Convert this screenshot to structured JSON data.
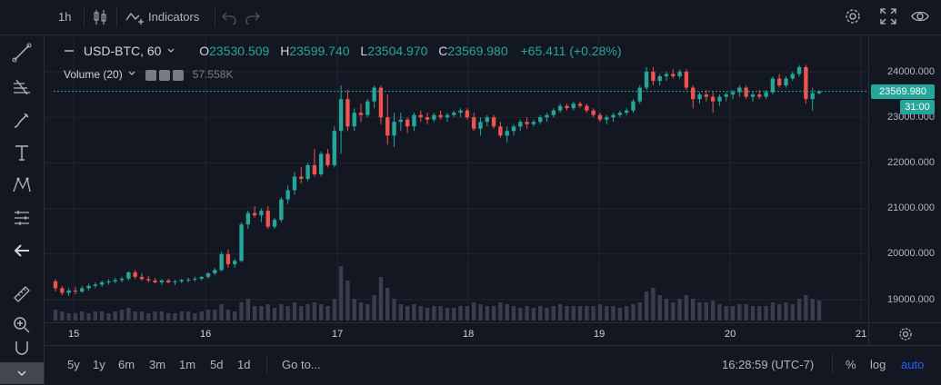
{
  "topbar": {
    "interval": "1h",
    "indicators_label": "Indicators"
  },
  "legend": {
    "symbol": "USD-BTC, 60",
    "open_label": "O",
    "open": "23530.509",
    "high_label": "H",
    "high": "23599.740",
    "low_label": "L",
    "low": "23504.970",
    "close_label": "C",
    "close": "23569.980",
    "change": "+65.411 (+0.28%)",
    "volume_label": "Volume (20)",
    "volume_value": "57.558K"
  },
  "price_axis": {
    "ticks": [
      "24000.000",
      "23000.000",
      "22000.000",
      "21000.000",
      "20000.000",
      "19000.000"
    ],
    "last_price": "23569.980",
    "countdown": "31:00"
  },
  "time_axis": {
    "ticks": [
      "15",
      "16",
      "17",
      "18",
      "19",
      "20",
      "21"
    ]
  },
  "bottombar": {
    "ranges": [
      "5y",
      "1y",
      "6m",
      "3m",
      "1m",
      "5d",
      "1d"
    ],
    "goto": "Go to...",
    "clock": "16:28:59 (UTC-7)",
    "percent": "%",
    "log": "log",
    "auto": "auto"
  },
  "colors": {
    "up": "#26a69a",
    "down": "#ef5350",
    "background": "#131722",
    "grid": "#2a2e39",
    "accent": "#2962ff"
  },
  "icons": [
    "crosshair-icon",
    "trend-line-icon",
    "fib-icon",
    "brush-icon",
    "text-icon",
    "pattern-icon",
    "measure-icon",
    "back-arrow-icon",
    "ruler-icon",
    "zoom-in-icon",
    "magnet-icon",
    "candles-icon",
    "indicators-icon",
    "undo-icon",
    "redo-icon",
    "settings-icon",
    "fullscreen-icon",
    "eye-icon",
    "gear-icon"
  ],
  "chart_data": {
    "type": "candlestick",
    "x_ticks": [
      "15",
      "16",
      "17",
      "18",
      "19",
      "20",
      "21"
    ],
    "y_ticks": [
      19000,
      20000,
      21000,
      22000,
      23000,
      24000
    ],
    "ylim": [
      18700,
      24400
    ],
    "last_price": 23569.98,
    "ohlc_approx": [
      [
        19400,
        19450,
        19180,
        19250
      ],
      [
        19250,
        19300,
        19100,
        19150
      ],
      [
        19150,
        19250,
        19080,
        19200
      ],
      [
        19200,
        19280,
        19120,
        19180
      ],
      [
        19180,
        19300,
        19150,
        19250
      ],
      [
        19250,
        19350,
        19200,
        19300
      ],
      [
        19300,
        19380,
        19250,
        19330
      ],
      [
        19330,
        19420,
        19280,
        19380
      ],
      [
        19380,
        19450,
        19330,
        19400
      ],
      [
        19400,
        19480,
        19360,
        19430
      ],
      [
        19430,
        19500,
        19380,
        19460
      ],
      [
        19460,
        19620,
        19420,
        19600
      ],
      [
        19600,
        19650,
        19450,
        19500
      ],
      [
        19500,
        19580,
        19420,
        19450
      ],
      [
        19450,
        19520,
        19380,
        19420
      ],
      [
        19420,
        19480,
        19350,
        19380
      ],
      [
        19380,
        19450,
        19330,
        19420
      ],
      [
        19420,
        19460,
        19350,
        19380
      ],
      [
        19380,
        19440,
        19320,
        19400
      ],
      [
        19400,
        19460,
        19360,
        19430
      ],
      [
        19430,
        19480,
        19380,
        19440
      ],
      [
        19440,
        19500,
        19400,
        19460
      ],
      [
        19460,
        19520,
        19420,
        19500
      ],
      [
        19500,
        19600,
        19460,
        19580
      ],
      [
        19580,
        19700,
        19540,
        19650
      ],
      [
        19650,
        20050,
        19620,
        20000
      ],
      [
        20000,
        20100,
        19700,
        19780
      ],
      [
        19780,
        19900,
        19700,
        19850
      ],
      [
        19850,
        20700,
        19820,
        20650
      ],
      [
        20650,
        20950,
        20550,
        20900
      ],
      [
        20900,
        21050,
        20800,
        20850
      ],
      [
        20850,
        21000,
        20700,
        20950
      ],
      [
        20950,
        21050,
        20550,
        20600
      ],
      [
        20600,
        20800,
        20550,
        20750
      ],
      [
        20750,
        21250,
        20700,
        21200
      ],
      [
        21200,
        21500,
        21100,
        21400
      ],
      [
        21400,
        21800,
        21300,
        21700
      ],
      [
        21700,
        21900,
        21550,
        21650
      ],
      [
        21650,
        22000,
        21600,
        21950
      ],
      [
        21950,
        22300,
        21700,
        21750
      ],
      [
        21750,
        22250,
        21700,
        22200
      ],
      [
        22200,
        22300,
        21900,
        21950
      ],
      [
        21950,
        22800,
        21900,
        22700
      ],
      [
        22700,
        23700,
        22200,
        23400
      ],
      [
        23400,
        23600,
        22700,
        22800
      ],
      [
        22800,
        23200,
        22700,
        23100
      ],
      [
        23100,
        23300,
        22900,
        23050
      ],
      [
        23050,
        23400,
        23000,
        23350
      ],
      [
        23350,
        23700,
        23200,
        23650
      ],
      [
        23650,
        23700,
        22850,
        23000
      ],
      [
        23000,
        23500,
        22400,
        22600
      ],
      [
        22600,
        23100,
        22350,
        22900
      ],
      [
        22900,
        23100,
        22700,
        22950
      ],
      [
        22950,
        23000,
        22650,
        22800
      ],
      [
        22800,
        23100,
        22700,
        23050
      ],
      [
        23050,
        23150,
        22900,
        23000
      ],
      [
        23000,
        23100,
        22850,
        22950
      ],
      [
        22950,
        23100,
        22900,
        23050
      ],
      [
        23050,
        23150,
        22950,
        23000
      ],
      [
        23000,
        23100,
        22900,
        23050
      ],
      [
        23050,
        23150,
        23000,
        23100
      ],
      [
        23100,
        23200,
        23000,
        23150
      ],
      [
        23150,
        23200,
        22950,
        23000
      ],
      [
        23000,
        23100,
        22700,
        22750
      ],
      [
        22750,
        23000,
        22600,
        22900
      ],
      [
        22900,
        23050,
        22800,
        23000
      ],
      [
        23000,
        23050,
        22750,
        22800
      ],
      [
        22800,
        22900,
        22550,
        22600
      ],
      [
        22600,
        22800,
        22450,
        22700
      ],
      [
        22700,
        22850,
        22600,
        22800
      ],
      [
        22800,
        22950,
        22700,
        22900
      ],
      [
        22900,
        23000,
        22750,
        22850
      ],
      [
        22850,
        22950,
        22800,
        22900
      ],
      [
        22900,
        23050,
        22850,
        23000
      ],
      [
        23000,
        23100,
        22900,
        23050
      ],
      [
        23050,
        23200,
        23000,
        23150
      ],
      [
        23150,
        23300,
        23100,
        23250
      ],
      [
        23250,
        23300,
        23150,
        23200
      ],
      [
        23200,
        23350,
        23150,
        23300
      ],
      [
        23300,
        23350,
        23200,
        23250
      ],
      [
        23250,
        23300,
        23100,
        23150
      ],
      [
        23150,
        23200,
        23000,
        23050
      ],
      [
        23050,
        23100,
        22900,
        22950
      ],
      [
        22950,
        23050,
        22850,
        23000
      ],
      [
        23000,
        23100,
        22900,
        23050
      ],
      [
        23050,
        23150,
        23000,
        23100
      ],
      [
        23100,
        23200,
        23050,
        23150
      ],
      [
        23150,
        23400,
        23100,
        23350
      ],
      [
        23350,
        23700,
        23300,
        23650
      ],
      [
        23650,
        24100,
        23600,
        24000
      ],
      [
        24000,
        24100,
        23700,
        23800
      ],
      [
        23800,
        23950,
        23700,
        23900
      ],
      [
        23900,
        24000,
        23800,
        23950
      ],
      [
        23950,
        24050,
        23850,
        23900
      ],
      [
        23900,
        24050,
        23850,
        24000
      ],
      [
        24000,
        24050,
        23600,
        23650
      ],
      [
        23650,
        23700,
        23200,
        23400
      ],
      [
        23400,
        23550,
        23300,
        23500
      ],
      [
        23500,
        23600,
        23350,
        23450
      ],
      [
        23450,
        23550,
        23100,
        23350
      ],
      [
        23350,
        23500,
        23250,
        23450
      ],
      [
        23450,
        23550,
        23350,
        23500
      ],
      [
        23500,
        23600,
        23400,
        23550
      ],
      [
        23550,
        23700,
        23450,
        23650
      ],
      [
        23650,
        23700,
        23400,
        23450
      ],
      [
        23450,
        23550,
        23350,
        23500
      ],
      [
        23500,
        23600,
        23400,
        23450
      ],
      [
        23450,
        23600,
        23400,
        23550
      ],
      [
        23550,
        23900,
        23500,
        23850
      ],
      [
        23850,
        23950,
        23650,
        23700
      ],
      [
        23700,
        23900,
        23650,
        23850
      ],
      [
        23850,
        24000,
        23800,
        23950
      ],
      [
        23950,
        24150,
        23900,
        24100
      ],
      [
        24100,
        24150,
        23300,
        23400
      ],
      [
        23400,
        23650,
        23150,
        23530
      ],
      [
        23530,
        23600,
        23505,
        23570
      ]
    ],
    "volume_approx": [
      6,
      5,
      4,
      4,
      5,
      4,
      5,
      5,
      4,
      5,
      6,
      7,
      5,
      5,
      4,
      5,
      5,
      4,
      4,
      5,
      5,
      4,
      5,
      6,
      6,
      9,
      6,
      5,
      10,
      12,
      8,
      8,
      9,
      7,
      9,
      8,
      10,
      8,
      9,
      10,
      9,
      8,
      12,
      30,
      22,
      12,
      10,
      9,
      14,
      24,
      18,
      12,
      9,
      8,
      9,
      8,
      7,
      8,
      8,
      7,
      7,
      8,
      8,
      10,
      9,
      8,
      8,
      10,
      9,
      8,
      7,
      8,
      7,
      8,
      7,
      8,
      9,
      8,
      8,
      8,
      8,
      8,
      9,
      8,
      8,
      7,
      8,
      9,
      10,
      16,
      18,
      14,
      12,
      10,
      12,
      14,
      12,
      10,
      10,
      11,
      9,
      8,
      8,
      9,
      9,
      8,
      8,
      8,
      10,
      9,
      10,
      9,
      12,
      14,
      12,
      11
    ]
  }
}
